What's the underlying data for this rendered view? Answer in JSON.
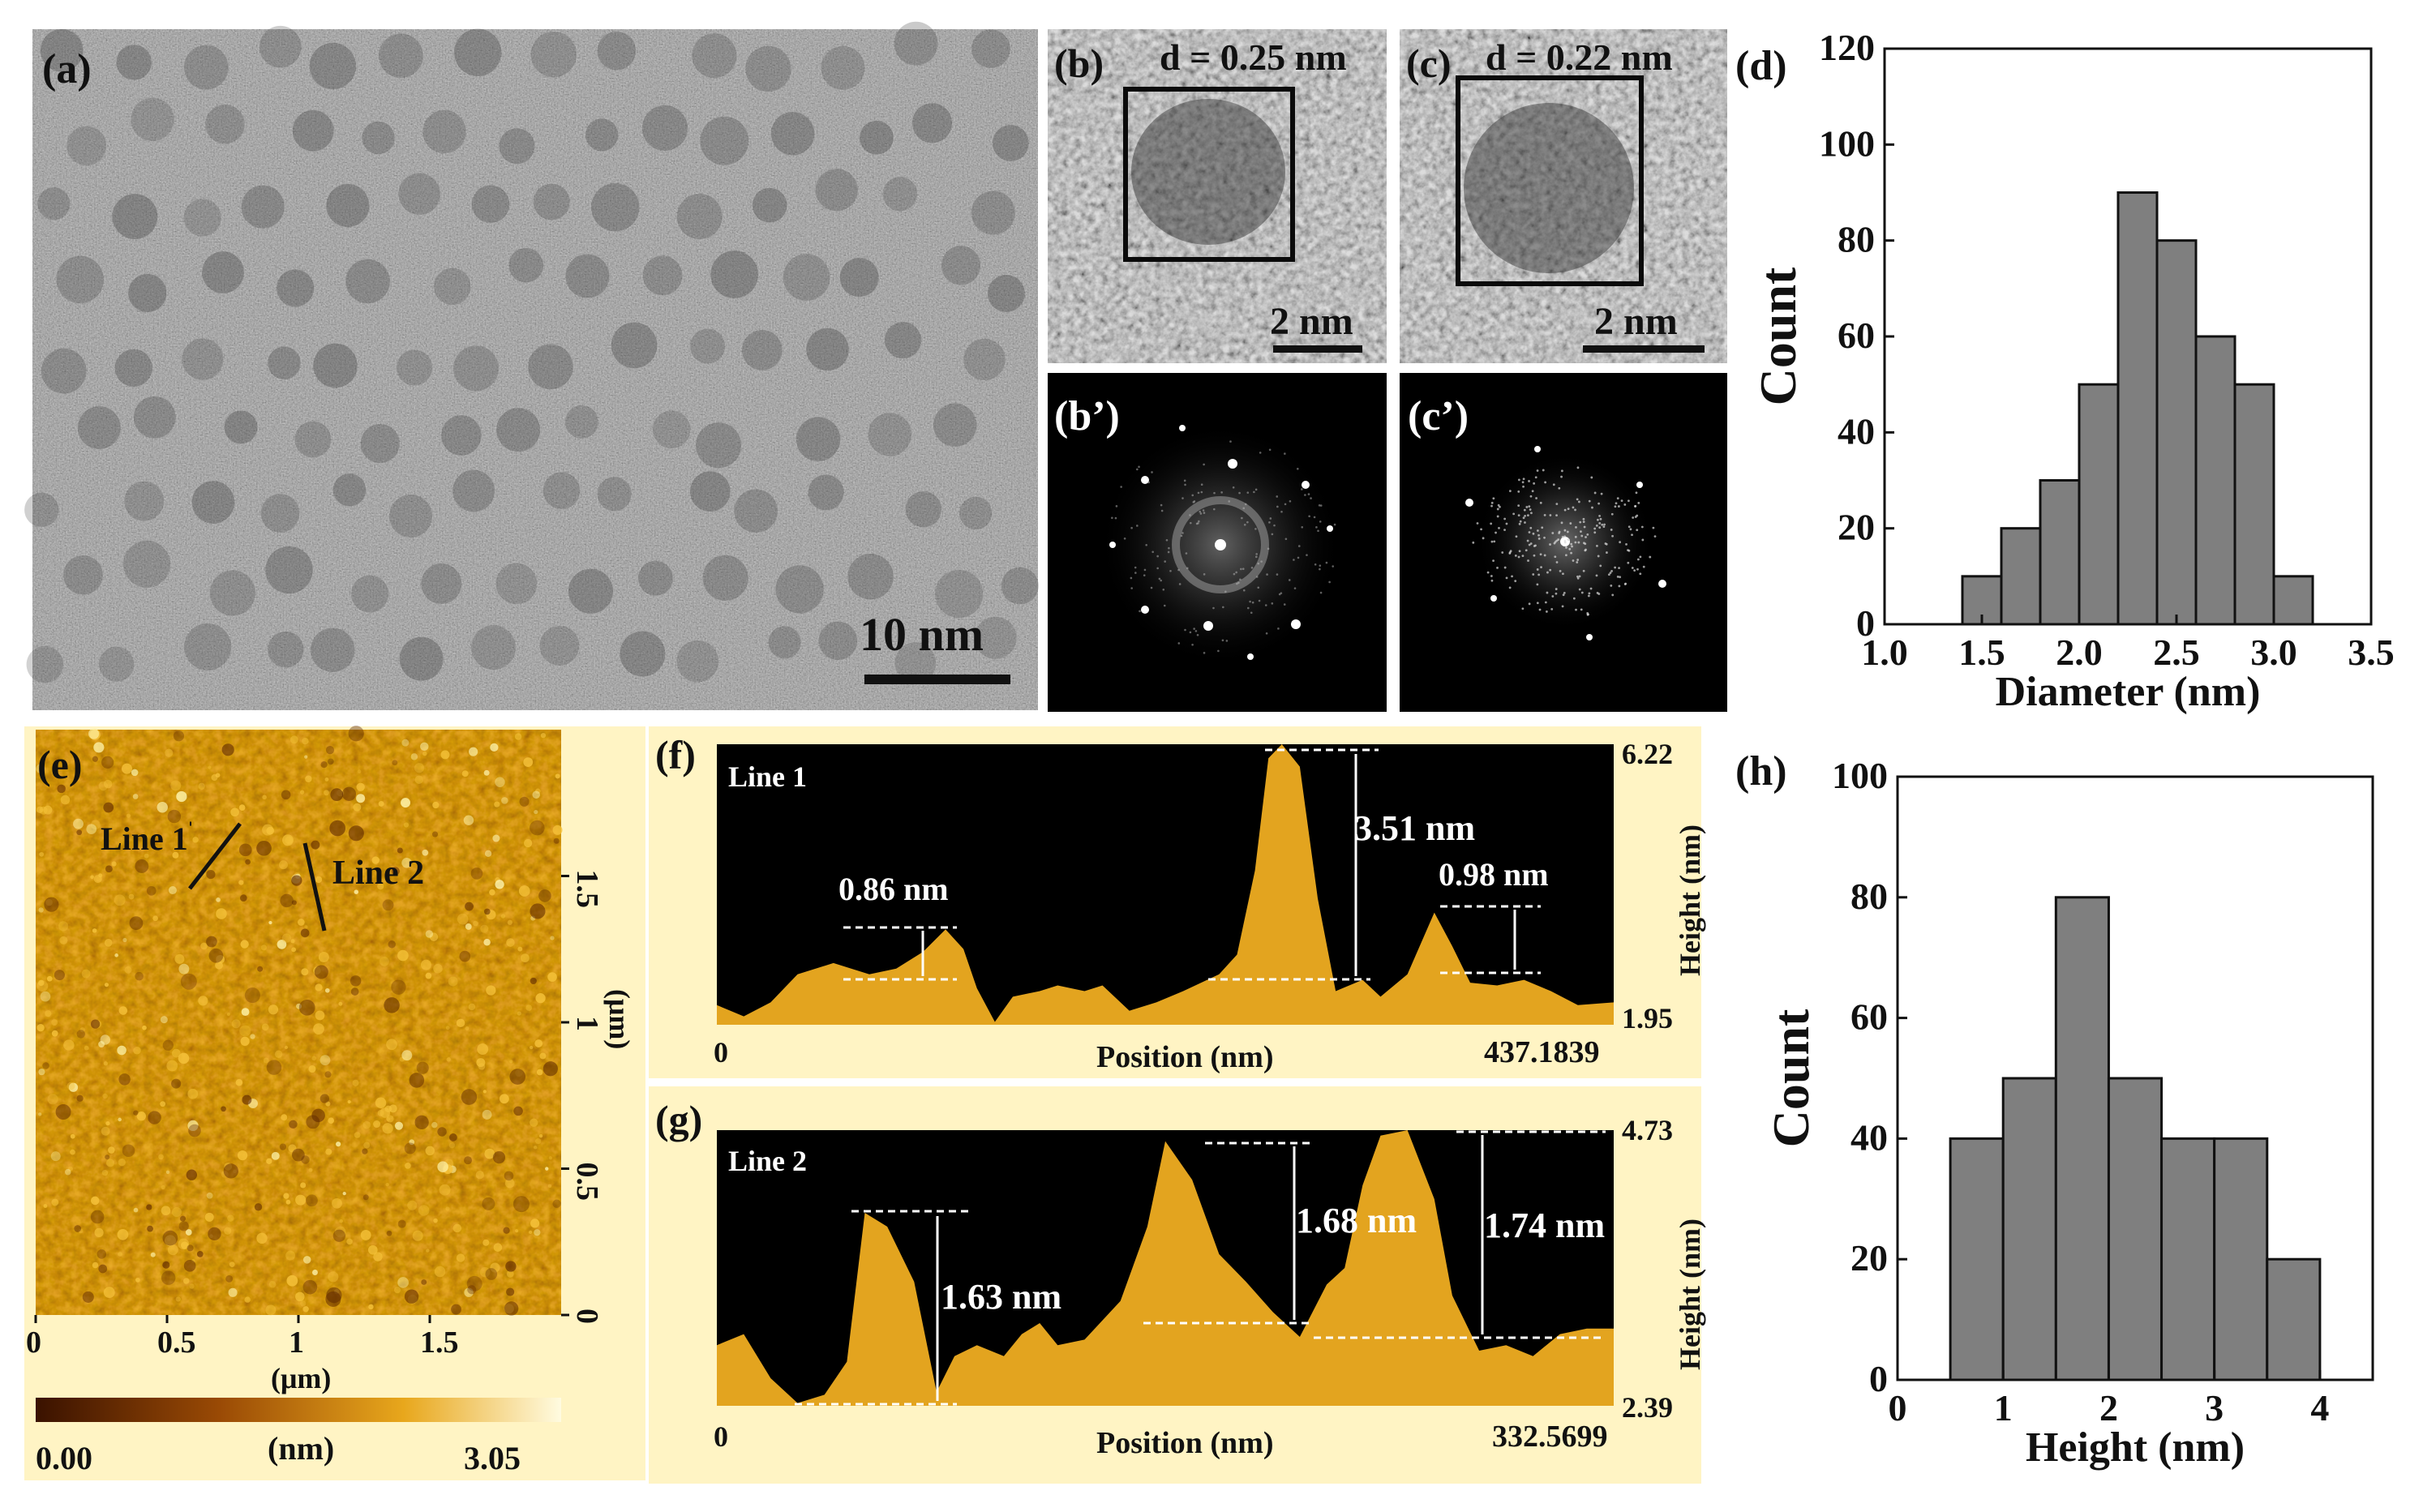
{
  "panels": {
    "a": {
      "label": "(a)",
      "scalebar": "10 nm"
    },
    "b": {
      "label": "(b)",
      "d_spacing": "d = 0.25 nm",
      "scalebar": "2 nm"
    },
    "c": {
      "label": "(c)",
      "d_spacing": "d = 0.22 nm",
      "scalebar": "2 nm"
    },
    "b_fft": {
      "label": "(b’)"
    },
    "c_fft": {
      "label": "(c’)"
    },
    "d": {
      "label": "(d)"
    },
    "e": {
      "label": "(e)",
      "line1": "Line 1",
      "line2": "Line 2",
      "xticks": [
        "0",
        "0.5",
        "1",
        "1.5"
      ],
      "xunit": "(μm)",
      "yticks": [
        "0",
        "0.5",
        "1",
        "1.5"
      ],
      "yunit": "(μm)",
      "colorbar_min": "0.00",
      "colorbar_unit": "(nm)",
      "colorbar_max": "3.05"
    },
    "f": {
      "label": "(f)",
      "line": "Line 1",
      "xlabel": "Position (nm)",
      "x_start": "0",
      "x_end": "437.1839",
      "y_top": "6.22",
      "y_bottom": "1.95",
      "ylabel": "Height (nm)",
      "annotations": [
        "0.86 nm",
        "3.51 nm",
        "0.98 nm"
      ]
    },
    "g": {
      "label": "(g)",
      "line": "Line 2",
      "xlabel": "Position (nm)",
      "x_start": "0",
      "x_end": "332.5699",
      "y_top": "4.73",
      "y_bottom": "2.39",
      "ylabel": "Height (nm)",
      "annotations": [
        "1.63 nm",
        "1.68 nm",
        "1.74 nm"
      ]
    },
    "h": {
      "label": "(h)"
    }
  },
  "chart_data": [
    {
      "type": "bar",
      "title": "",
      "xlabel": "Diameter (nm)",
      "ylabel": "Count",
      "xlim": [
        1.0,
        3.5
      ],
      "ylim": [
        0,
        120
      ],
      "xticks": [
        "1.0",
        "1.5",
        "2.0",
        "2.5",
        "3.0",
        "3.5"
      ],
      "yticks": [
        "0",
        "20",
        "40",
        "60",
        "80",
        "100",
        "120"
      ],
      "bin_edges": [
        1.4,
        1.6,
        1.8,
        2.0,
        2.2,
        2.4,
        2.6,
        2.8,
        3.0,
        3.2
      ],
      "values": [
        10,
        20,
        30,
        50,
        90,
        80,
        60,
        50,
        10
      ],
      "bar_color": "#7f7f7f"
    },
    {
      "type": "bar",
      "title": "",
      "xlabel": "Height (nm)",
      "ylabel": "Count",
      "xlim": [
        0,
        4.5
      ],
      "ylim": [
        0,
        100
      ],
      "xticks": [
        "0",
        "1",
        "2",
        "3",
        "4"
      ],
      "yticks": [
        "0",
        "20",
        "40",
        "60",
        "80",
        "100"
      ],
      "bin_edges": [
        0.5,
        1.0,
        1.5,
        2.0,
        2.5,
        3.0,
        3.5,
        4.0
      ],
      "values": [
        40,
        50,
        80,
        50,
        40,
        40,
        20
      ],
      "bar_color": "#7f7f7f"
    }
  ],
  "colors": {
    "afm_dark": "#3a1600",
    "afm_gold": "#e8a71c",
    "afm_light": "#fff6b0",
    "profile_fill": "#e3a41f",
    "hist_bar": "#7f7f7f"
  }
}
